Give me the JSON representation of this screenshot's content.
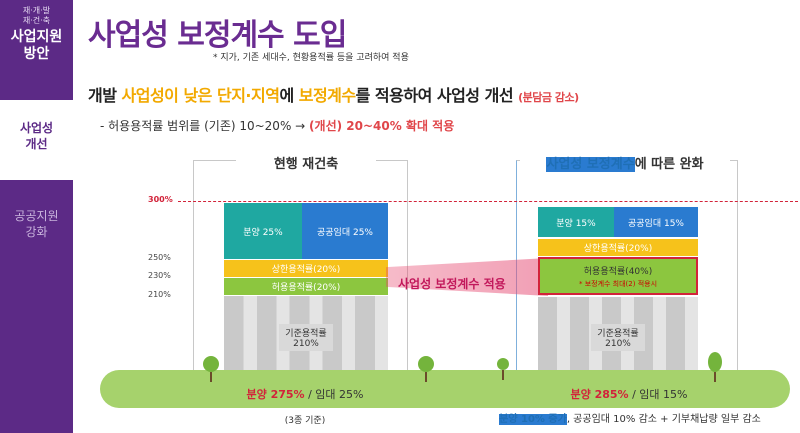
{
  "sidebar": {
    "subtitle": "재·개·발\n재·건·축",
    "title": "사업지원\n방안",
    "active_item": "사업성\n개선",
    "inactive_item": "공공지원\n강화"
  },
  "header": {
    "title": "사업성 보정계수 도입",
    "note": "* 지가, 기존 세대수, 현황용적률 등을 고려하여 적용"
  },
  "headline": {
    "part1": "개발 ",
    "part2": "사업성이 낮은 단지·지역",
    "part3": "에 ",
    "part4": "보정계수",
    "part5": "를 적용하여 사업성 개선 ",
    "part6": "(분담금 감소)"
  },
  "subline": {
    "part1": "- 허용용적률 범위를 (기존) 10~20% → ",
    "part2": "(개선) 20~40% 확대 적용"
  },
  "diagram": {
    "left_header": "현행 재건축",
    "right_header_blue": "사업성 보정계수",
    "right_header_rest": "에 따른 완화",
    "y_labels": [
      "300%",
      "250%",
      "230%",
      "210%"
    ],
    "left": {
      "sale": "분양 25%",
      "rental": "공공임대 25%",
      "upper": "상한용적률(20%)",
      "allowed": "허용용적률(20%)",
      "base": "기준용적률\n210%"
    },
    "right": {
      "sale": "분양 15%",
      "rental": "공공임대 15%",
      "upper": "상한용적률(20%)",
      "allowed": "허용용적률(40%)",
      "allowed_note": "* 보정계수 최대(2) 적용시",
      "base": "기준용적률\n210%"
    },
    "band_label": "사업성 보정계수 적용",
    "ground_left_red": "분양 275%",
    "ground_left_rest": " / 임대 25%",
    "ground_right_red": "분양 285%",
    "ground_right_rest": " / 임대 15%",
    "foot_left": "(3종 기준)",
    "foot_right_blue": "분양 10% 증가",
    "foot_right_rest": ", 공공임대 10% 감소 + 기부채납량 일부 감소"
  },
  "colors": {
    "purple": "#5c2a86",
    "title": "#6a2c91",
    "yellow": "#f2a900",
    "red": "#e0464a",
    "teal": "#1fa8a1",
    "blue": "#2a7bd0",
    "green": "#8cc63f"
  }
}
